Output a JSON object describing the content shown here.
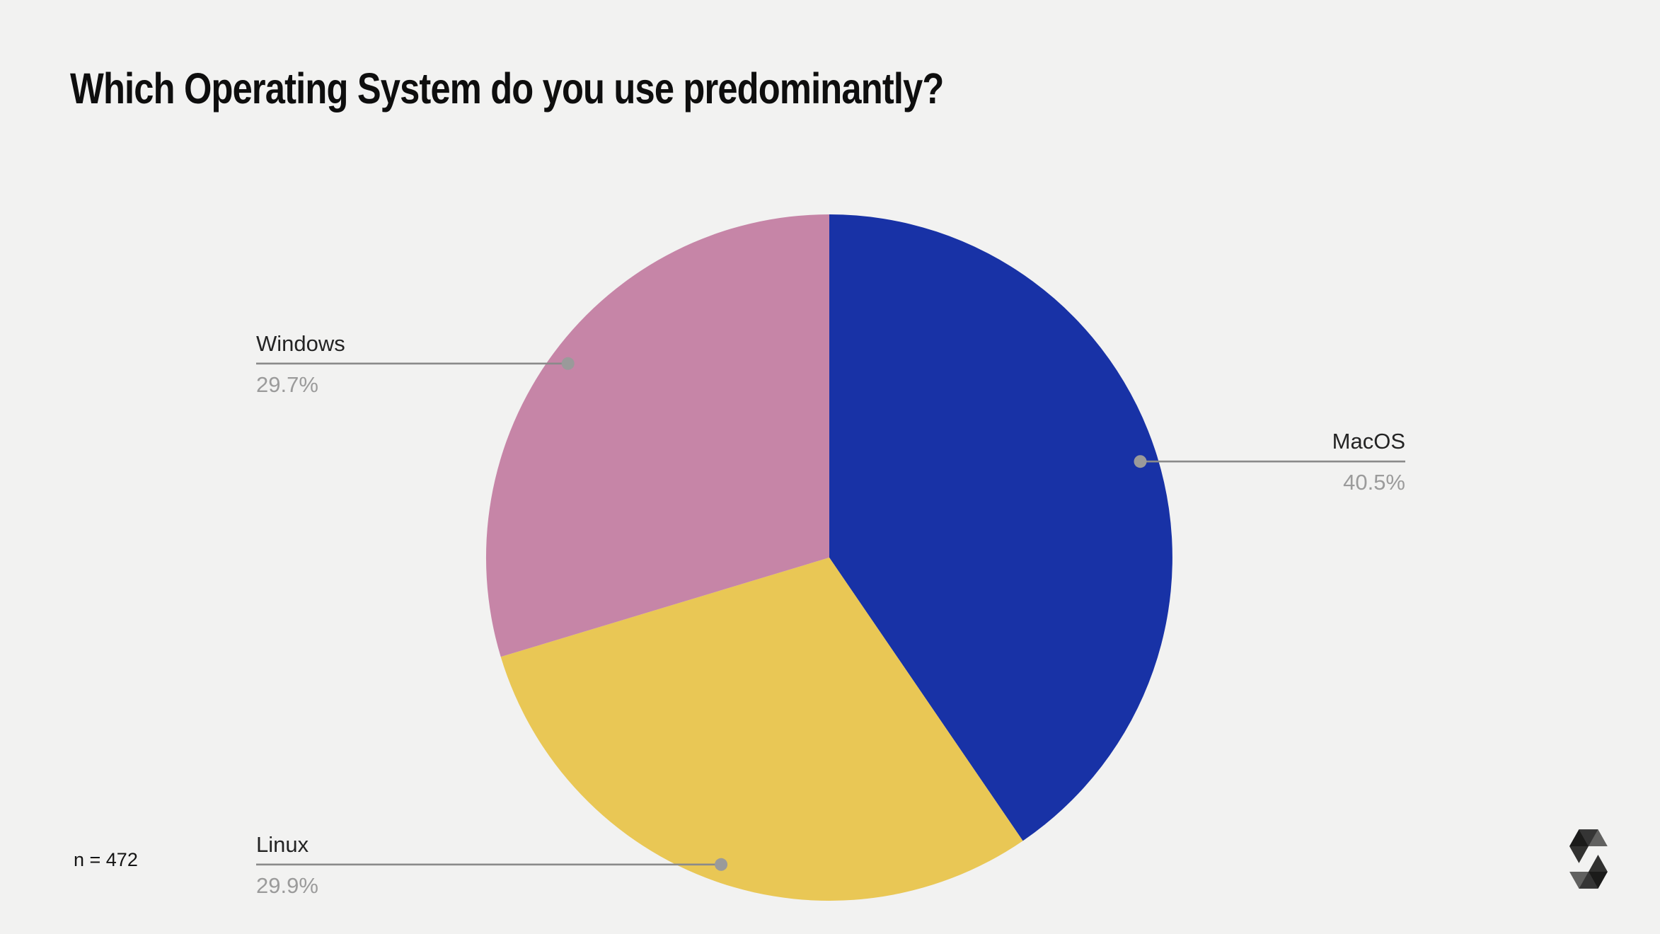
{
  "chart_data": {
    "type": "pie",
    "title": "Which Operating System do you use predominantly?",
    "slices": [
      {
        "label": "MacOS",
        "value": 40.5,
        "percent_label": "40.5%",
        "color": "#1832a6",
        "label_side": "right"
      },
      {
        "label": "Linux",
        "value": 29.9,
        "percent_label": "29.9%",
        "color": "#e9c755",
        "label_side": "left"
      },
      {
        "label": "Windows",
        "value": 29.7,
        "percent_label": "29.7%",
        "color": "#c685a7",
        "label_side": "left"
      }
    ],
    "start_angle_deg": 0,
    "direction": "clockwise",
    "legend_position": "callout-labels",
    "sample_size": "n = 472"
  },
  "footer": {
    "sample_size": "n = 472"
  },
  "branding": {
    "logo_name": "solidity-logo"
  },
  "colors": {
    "background": "#f2f2f1",
    "leader_line": "#8a8a8a",
    "leader_dot": "#9a9a9a",
    "label_text": "#242424",
    "percent_text": "#9b9b9b",
    "title_text": "#0e0e0e"
  }
}
